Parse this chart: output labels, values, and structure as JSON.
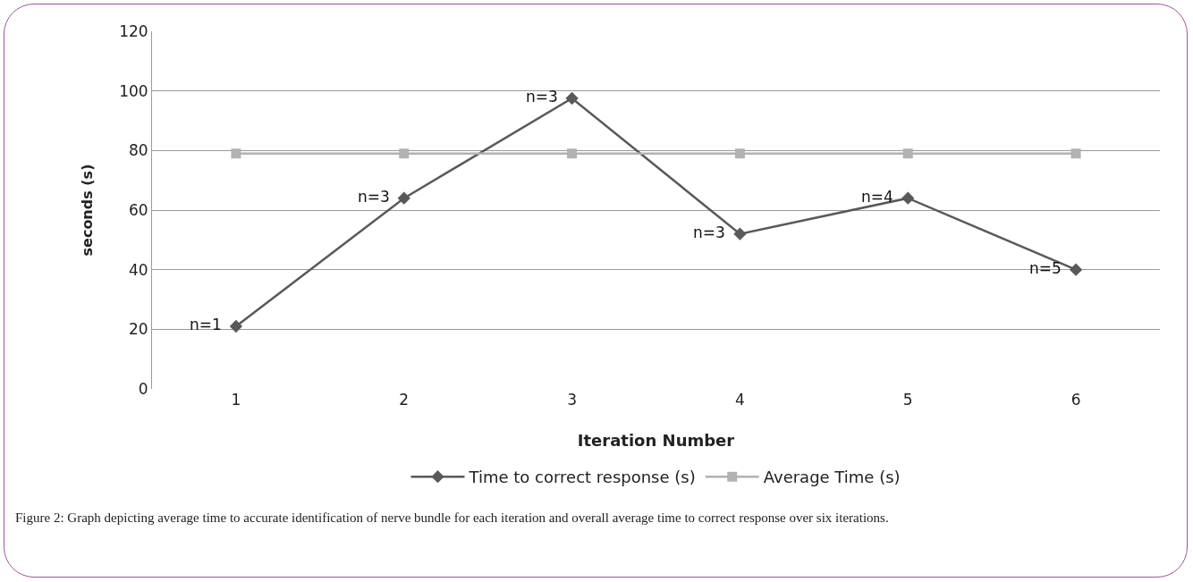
{
  "chart_data": {
    "type": "line",
    "xlabel": "Iteration Number",
    "ylabel": "seconds (s)",
    "x": [
      1,
      2,
      3,
      4,
      5,
      6
    ],
    "xlim": [
      0.5,
      6.5
    ],
    "xticks": [
      1,
      2,
      3,
      4,
      5,
      6
    ],
    "ylim": [
      0,
      120
    ],
    "yticks": [
      0,
      20,
      40,
      60,
      80,
      100,
      120
    ],
    "series": [
      {
        "name": "Time to correct response (s)",
        "color": "#595959",
        "values": [
          21,
          64,
          97.5,
          52,
          64,
          40
        ],
        "marker": "diamond"
      },
      {
        "name": "Average Time (s)",
        "color": "#b2b2b2",
        "values": [
          79,
          79,
          79,
          79,
          79,
          79
        ],
        "marker": "square"
      }
    ],
    "grid": "y",
    "legend": "bottom",
    "annotations": [
      {
        "text": "n=1",
        "x": 1,
        "y": 21
      },
      {
        "text": "n=3",
        "x": 2,
        "y": 64
      },
      {
        "text": "n=3",
        "x": 3,
        "y": 97.5
      },
      {
        "text": "n=3",
        "x": 4,
        "y": 52
      },
      {
        "text": "n=4",
        "x": 5,
        "y": 64
      },
      {
        "text": "n=5",
        "x": 6,
        "y": 40
      },
      "Figure 2: Graph depicting average time to accurate identification of nerve bundle for each iteration and overall average time to correct response over six iterations."
    ]
  }
}
